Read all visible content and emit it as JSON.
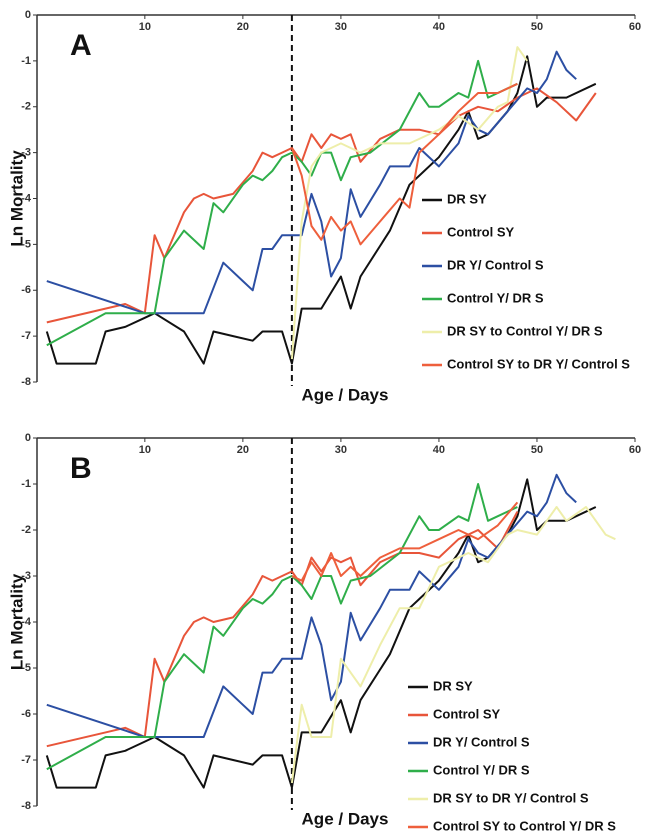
{
  "chart_data": [
    {
      "type": "line",
      "label": "A",
      "ylabel": "Ln Mortality",
      "xlabel": "Age / Days",
      "xlim": [
        -1,
        60
      ],
      "ylim": [
        -8,
        0
      ],
      "xticks": [
        10,
        20,
        30,
        40,
        50,
        60
      ],
      "yticks": [
        0,
        -1,
        -2,
        -3,
        -4,
        -5,
        -6,
        -7,
        -8
      ],
      "vline": 25,
      "legend": "lower right",
      "series": [
        {
          "name": "DR SY",
          "color": "#111111",
          "x": [
            0,
            1,
            3,
            5,
            6,
            8,
            10,
            11,
            14,
            16,
            17,
            19,
            21,
            22,
            24,
            25,
            26,
            28,
            30,
            31,
            32,
            35,
            37,
            38,
            40,
            42,
            43,
            44,
            45,
            47,
            48,
            49,
            50,
            51,
            53,
            56
          ],
          "values": [
            -6.9,
            -7.6,
            -7.6,
            -7.6,
            -6.9,
            -6.8,
            -6.6,
            -6.5,
            -6.9,
            -7.6,
            -6.9,
            -7.0,
            -7.1,
            -6.9,
            -6.9,
            -7.6,
            -6.4,
            -6.4,
            -5.7,
            -6.4,
            -5.7,
            -4.7,
            -3.7,
            -3.5,
            -3.1,
            -2.5,
            -2.1,
            -2.7,
            -2.6,
            -2.1,
            -1.7,
            -0.9,
            -2.0,
            -1.8,
            -1.8,
            -1.5
          ]
        },
        {
          "name": "Control SY",
          "color": "#e8553a",
          "x": [
            0,
            8,
            10,
            11,
            12,
            14,
            15,
            16,
            17,
            19,
            21,
            22,
            23,
            24,
            25,
            26,
            27,
            28,
            29,
            30,
            31,
            32,
            34,
            36,
            38,
            40,
            42,
            44,
            46,
            48,
            50,
            52,
            54,
            56
          ],
          "values": [
            -6.7,
            -6.3,
            -6.5,
            -4.8,
            -5.3,
            -4.3,
            -4.0,
            -3.9,
            -4.0,
            -3.9,
            -3.4,
            -3.0,
            -3.1,
            -3.0,
            -2.9,
            -3.2,
            -2.6,
            -2.9,
            -2.6,
            -2.7,
            -2.6,
            -3.2,
            -2.7,
            -2.5,
            -2.5,
            -2.6,
            -2.2,
            -2.0,
            -2.1,
            -1.8,
            -1.6,
            -1.9,
            -2.3,
            -1.7
          ]
        },
        {
          "name": "DR Y/ Control S",
          "color": "#2c4fa3",
          "x": [
            0,
            10,
            16,
            18,
            20,
            21,
            22,
            23,
            24,
            26,
            27,
            28,
            29,
            30,
            31,
            32,
            34,
            35,
            37,
            38,
            40,
            42,
            43,
            44,
            45,
            47,
            49,
            50,
            51,
            52,
            53,
            54
          ],
          "values": [
            -5.8,
            -6.5,
            -6.5,
            -5.4,
            -5.8,
            -6.0,
            -5.1,
            -5.1,
            -4.8,
            -4.8,
            -3.9,
            -4.5,
            -5.7,
            -5.3,
            -3.8,
            -4.4,
            -3.7,
            -3.3,
            -3.3,
            -2.9,
            -3.3,
            -2.8,
            -2.2,
            -2.5,
            -2.6,
            -2.1,
            -1.6,
            -1.7,
            -1.4,
            -0.8,
            -1.2,
            -1.4
          ]
        },
        {
          "name": "Control Y/ DR S",
          "color": "#2fae4a",
          "x": [
            0,
            6,
            10,
            11,
            12,
            14,
            16,
            17,
            18,
            20,
            21,
            22,
            23,
            24,
            25,
            26,
            27,
            28,
            29,
            30,
            31,
            33,
            36,
            38,
            39,
            40,
            42,
            43,
            44,
            45,
            46,
            48
          ],
          "values": [
            -7.2,
            -6.5,
            -6.5,
            -6.5,
            -5.3,
            -4.7,
            -5.1,
            -4.1,
            -4.3,
            -3.7,
            -3.5,
            -3.6,
            -3.4,
            -3.1,
            -3.0,
            -3.2,
            -3.5,
            -3.0,
            -3.0,
            -3.6,
            -3.1,
            -3.0,
            -2.5,
            -1.7,
            -2.0,
            -2.0,
            -1.7,
            -1.8,
            -1.0,
            -1.8,
            -1.7,
            -1.5
          ]
        },
        {
          "name": "DR SY to Control Y/ DR S",
          "color": "#eeeeaa",
          "x": [
            25,
            26,
            27,
            28,
            30,
            32,
            34,
            37,
            38,
            40,
            42,
            44,
            46,
            47,
            48,
            49
          ],
          "values": [
            -7.5,
            -4.5,
            -3.3,
            -3.0,
            -2.8,
            -3.0,
            -2.8,
            -2.8,
            -2.7,
            -2.5,
            -2.2,
            -2.5,
            -2.0,
            -1.9,
            -0.7,
            -1.0
          ]
        },
        {
          "name": "Control SY to DR Y/ Control S",
          "color": "#ee5f3c",
          "x": [
            25,
            26,
            27,
            28,
            29,
            30,
            31,
            32,
            34,
            36,
            37,
            38,
            40,
            42,
            44,
            46,
            48
          ],
          "values": [
            -2.9,
            -3.5,
            -4.6,
            -4.9,
            -4.4,
            -4.7,
            -4.5,
            -5.0,
            -4.5,
            -4.0,
            -4.2,
            -3.0,
            -2.6,
            -2.1,
            -1.7,
            -1.7,
            -1.5
          ]
        }
      ]
    },
    {
      "type": "line",
      "label": "B",
      "ylabel": "Ln Mortality",
      "xlabel": "Age / Days",
      "xlim": [
        -1,
        60
      ],
      "ylim": [
        -8,
        0
      ],
      "xticks": [
        10,
        20,
        30,
        40,
        50,
        60
      ],
      "yticks": [
        0,
        -1,
        -2,
        -3,
        -4,
        -5,
        -6,
        -7,
        -8
      ],
      "vline": 25,
      "legend": "lower right",
      "series": [
        {
          "name": "DR SY",
          "color": "#111111",
          "x": [
            0,
            1,
            3,
            5,
            6,
            8,
            10,
            11,
            14,
            16,
            17,
            19,
            21,
            22,
            24,
            25,
            26,
            28,
            30,
            31,
            32,
            35,
            37,
            38,
            40,
            42,
            43,
            44,
            45,
            47,
            48,
            49,
            50,
            51,
            53,
            56
          ],
          "values": [
            -6.9,
            -7.6,
            -7.6,
            -7.6,
            -6.9,
            -6.8,
            -6.6,
            -6.5,
            -6.9,
            -7.6,
            -6.9,
            -7.0,
            -7.1,
            -6.9,
            -6.9,
            -7.6,
            -6.4,
            -6.4,
            -5.7,
            -6.4,
            -5.7,
            -4.7,
            -3.7,
            -3.5,
            -3.1,
            -2.5,
            -2.1,
            -2.7,
            -2.6,
            -2.1,
            -1.7,
            -0.9,
            -2.0,
            -1.8,
            -1.8,
            -1.5
          ]
        },
        {
          "name": "Control SY",
          "color": "#e8553a",
          "x": [
            0,
            8,
            10,
            11,
            12,
            14,
            15,
            16,
            17,
            19,
            21,
            22,
            23,
            24,
            25,
            26,
            27,
            28,
            29,
            30,
            31,
            32,
            34,
            36,
            38,
            40,
            42,
            44,
            46,
            48
          ],
          "values": [
            -6.7,
            -6.3,
            -6.5,
            -4.8,
            -5.3,
            -4.3,
            -4.0,
            -3.9,
            -4.0,
            -3.9,
            -3.4,
            -3.0,
            -3.1,
            -3.0,
            -2.9,
            -3.2,
            -2.6,
            -2.9,
            -2.6,
            -2.7,
            -2.6,
            -3.2,
            -2.7,
            -2.5,
            -2.5,
            -2.6,
            -2.2,
            -2.0,
            -2.4,
            -1.6
          ]
        },
        {
          "name": "DR Y/ Control S",
          "color": "#2c4fa3",
          "x": [
            0,
            10,
            16,
            18,
            20,
            21,
            22,
            23,
            24,
            26,
            27,
            28,
            29,
            30,
            31,
            32,
            34,
            35,
            37,
            38,
            40,
            42,
            43,
            44,
            45,
            47,
            49,
            50,
            51,
            52,
            53,
            54
          ],
          "values": [
            -5.8,
            -6.5,
            -6.5,
            -5.4,
            -5.8,
            -6.0,
            -5.1,
            -5.1,
            -4.8,
            -4.8,
            -3.9,
            -4.5,
            -5.7,
            -5.3,
            -3.8,
            -4.4,
            -3.7,
            -3.3,
            -3.3,
            -2.9,
            -3.3,
            -2.8,
            -2.2,
            -2.5,
            -2.6,
            -2.1,
            -1.6,
            -1.7,
            -1.4,
            -0.8,
            -1.2,
            -1.4
          ]
        },
        {
          "name": "Control Y/ DR S",
          "color": "#2fae4a",
          "x": [
            0,
            6,
            10,
            11,
            12,
            14,
            16,
            17,
            18,
            20,
            21,
            22,
            23,
            24,
            25,
            26,
            27,
            28,
            29,
            30,
            31,
            33,
            36,
            38,
            39,
            40,
            42,
            43,
            44,
            45,
            46,
            48
          ],
          "values": [
            -7.2,
            -6.5,
            -6.5,
            -6.5,
            -5.3,
            -4.7,
            -5.1,
            -4.1,
            -4.3,
            -3.7,
            -3.5,
            -3.6,
            -3.4,
            -3.1,
            -3.0,
            -3.2,
            -3.5,
            -3.0,
            -3.0,
            -3.6,
            -3.1,
            -3.0,
            -2.5,
            -1.7,
            -2.0,
            -2.0,
            -1.7,
            -1.8,
            -1.0,
            -1.8,
            -1.7,
            -1.5
          ]
        },
        {
          "name": "DR SY to DR Y/ Control S",
          "color": "#eeeeaa",
          "x": [
            25,
            26,
            27,
            29,
            30,
            32,
            34,
            36,
            38,
            40,
            43,
            45,
            47,
            48,
            50,
            52,
            53,
            55,
            57,
            58
          ],
          "values": [
            -7.5,
            -5.8,
            -6.5,
            -6.5,
            -4.8,
            -5.4,
            -4.5,
            -3.7,
            -3.7,
            -2.8,
            -2.5,
            -2.7,
            -2.1,
            -2.0,
            -2.1,
            -1.5,
            -1.8,
            -1.5,
            -2.1,
            -2.2
          ]
        },
        {
          "name": "Control SY to Control Y/ DR S",
          "color": "#ee5f3c",
          "x": [
            25,
            26,
            27,
            28,
            29,
            30,
            31,
            32,
            34,
            36,
            38,
            40,
            42,
            44,
            46,
            48
          ],
          "values": [
            -3.0,
            -3.1,
            -2.7,
            -3.0,
            -2.5,
            -3.0,
            -2.8,
            -3.0,
            -2.6,
            -2.4,
            -2.4,
            -2.2,
            -2.0,
            -2.2,
            -1.9,
            -1.4
          ]
        }
      ]
    }
  ]
}
